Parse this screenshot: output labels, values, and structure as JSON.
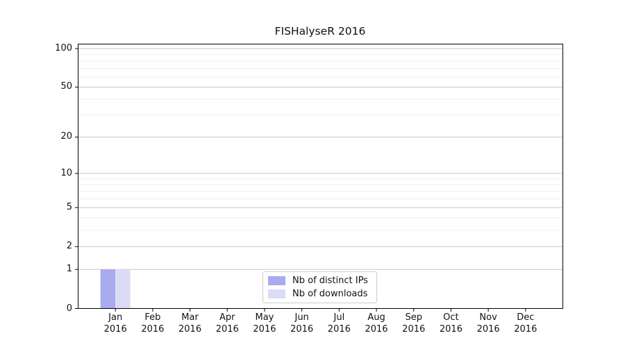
{
  "chart_data": {
    "type": "bar",
    "title": "FISHalyseR 2016",
    "x": {
      "categories": [
        "Jan",
        "Feb",
        "Mar",
        "Apr",
        "May",
        "Jun",
        "Jul",
        "Aug",
        "Sep",
        "Oct",
        "Nov",
        "Dec"
      ],
      "year": "2016"
    },
    "series": [
      {
        "name": "Nb of distinct IPs",
        "color": "#aaaaf0",
        "values": [
          1,
          0,
          0,
          0,
          0,
          0,
          0,
          0,
          0,
          0,
          0,
          0
        ]
      },
      {
        "name": "Nb of downloads",
        "color": "#dcdcf8",
        "values": [
          1,
          0,
          0,
          0,
          0,
          0,
          0,
          0,
          0,
          0,
          0,
          0
        ]
      }
    ],
    "y_axis": {
      "scale": "log10(value+1)",
      "major_ticks": [
        0,
        1,
        2,
        5,
        10,
        20,
        50,
        100
      ],
      "minor_ticks": [
        3,
        4,
        6,
        7,
        8,
        9,
        30,
        40,
        60,
        70,
        80,
        90
      ],
      "ylim": [
        0,
        109
      ]
    },
    "grid": {
      "orientation": "horizontal",
      "major_color": "#c6c6c6",
      "minor_color": "#efefef"
    },
    "legend": {
      "position": "inside-bottom-center"
    },
    "spine_color": "#000000"
  }
}
